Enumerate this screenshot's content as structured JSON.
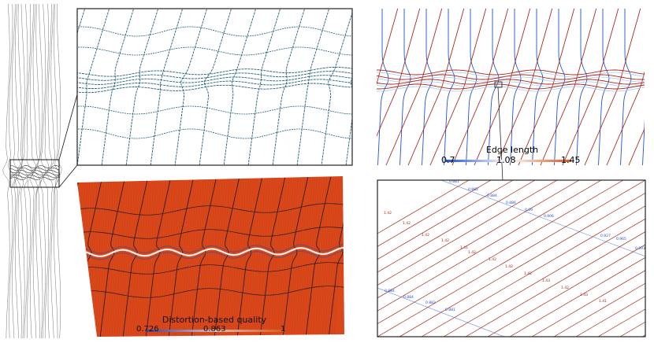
{
  "edge_length_legend": {
    "title": "Edge length",
    "min": "0.7",
    "mid": "1.08",
    "max": "1.45",
    "color_low": "#1f4fd8",
    "color_high": "#d4561c"
  },
  "quality_legend": {
    "title": "Distortion-based quality",
    "min": "0.726",
    "mid": "0.863",
    "max": "1",
    "color_low": "#5a4a8a",
    "color_high": "#e05a1a"
  },
  "zoom_values": {
    "blue": [
      "0.881",
      "0.882",
      "0.884",
      "0.886",
      "0.89",
      "0.906",
      "0.927",
      "0.965",
      "0.893",
      "0.884",
      "0.884",
      "0.882",
      "0.881"
    ],
    "red": [
      "1.42",
      "1.42",
      "1.42",
      "1.42",
      "1.41",
      "1.42",
      "1.42",
      "1.42",
      "1.42",
      "1.43",
      "1.42",
      "1.43",
      "1.41"
    ]
  },
  "colors": {
    "mesh_line": "#1f5f7a",
    "surface": "#d9471a",
    "edge_blue": "#2255cc",
    "edge_red": "#a8281c",
    "faint_blue": "#a9c8ee"
  }
}
